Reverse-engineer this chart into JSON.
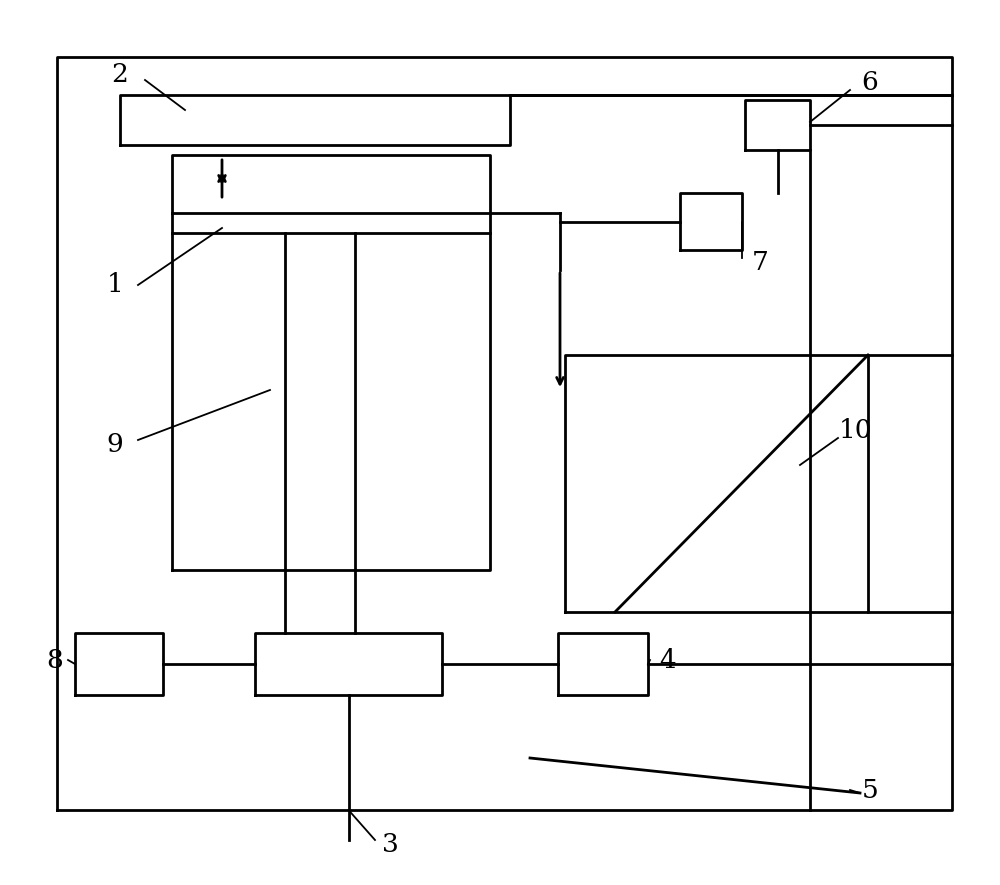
{
  "figsize": [
    10.0,
    8.85
  ],
  "dpi": 100,
  "bg_color": "#ffffff",
  "lw": 2.0,
  "lw_leader": 1.3
}
